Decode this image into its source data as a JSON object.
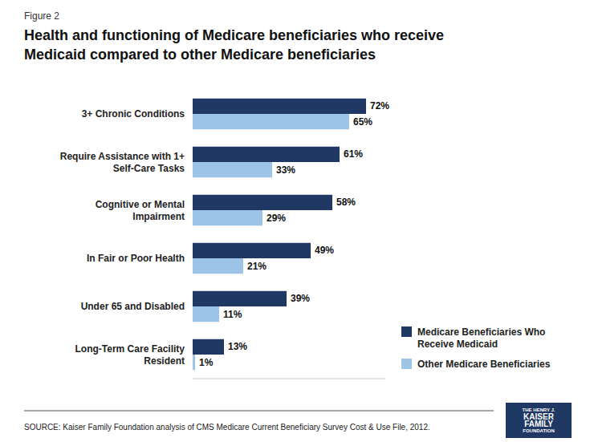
{
  "chart_data": {
    "type": "bar",
    "orientation": "horizontal",
    "subtitle": "Figure 2",
    "title": "Health and functioning of Medicare beneficiaries who receive\nMedicaid compared to other Medicare beneficiaries",
    "categories": [
      "3+ Chronic Conditions",
      "Require Assistance with 1+ Self-Care Tasks",
      "Cognitive or Mental Impairment",
      "In Fair or Poor Health",
      "Under 65 and Disabled",
      "Long-Term Care Facility Resident"
    ],
    "series": [
      {
        "name": "Medicare Beneficiaries Who\nReceive Medicaid",
        "color": "#1F3864",
        "values": [
          72,
          61,
          58,
          49,
          39,
          13
        ],
        "value_labels": [
          "72%",
          "61%",
          "58%",
          "49%",
          "39%",
          "13%"
        ]
      },
      {
        "name": "Other Medicare Beneficiaries",
        "color": "#9DC3E6",
        "values": [
          65,
          33,
          29,
          21,
          11,
          1
        ],
        "value_labels": [
          "65%",
          "33%",
          "29%",
          "21%",
          "11%",
          "1%"
        ]
      }
    ],
    "xlim": [
      0,
      80
    ],
    "data_labels": true,
    "tick_labels": "y",
    "grid": false,
    "legend": "right",
    "annotations": [
      "SOURCE:  Kaiser Family Foundation analysis of CMS Medicare Current Beneficiary Survey Cost & Use File, 2012.",
      "THE HENRY J.",
      "KAISER",
      "FAMILY",
      "FOUNDATION"
    ]
  }
}
